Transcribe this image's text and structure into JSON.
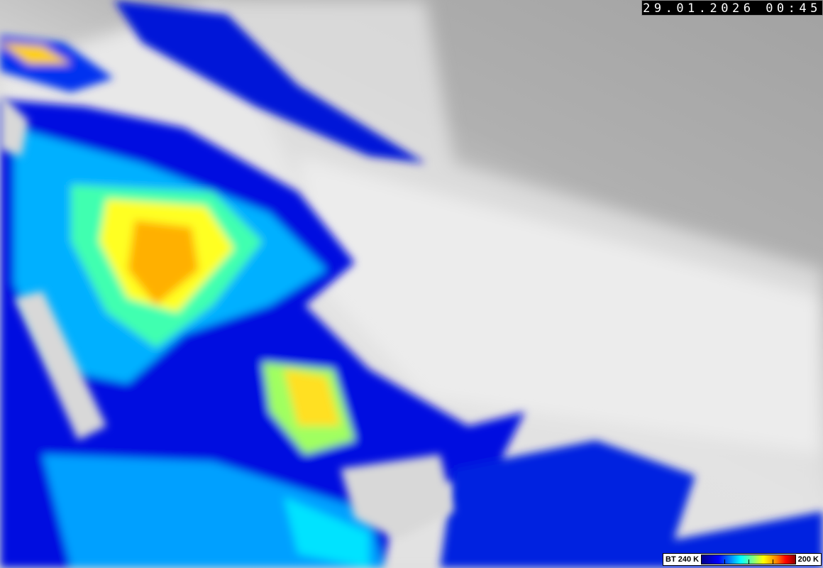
{
  "timestamp": "29.01.2026 00:45",
  "legend": {
    "left_label": "BT 240 K",
    "right_label": "200 K",
    "colors": [
      "#00008c",
      "#0000ff",
      "#0080ff",
      "#00ffff",
      "#80ff80",
      "#ffff00",
      "#ff8000",
      "#ff0000",
      "#8c0000"
    ]
  },
  "colors": {
    "clear_sky": "#a8a8a8",
    "warm_cloud": "#e8e8e8"
  }
}
